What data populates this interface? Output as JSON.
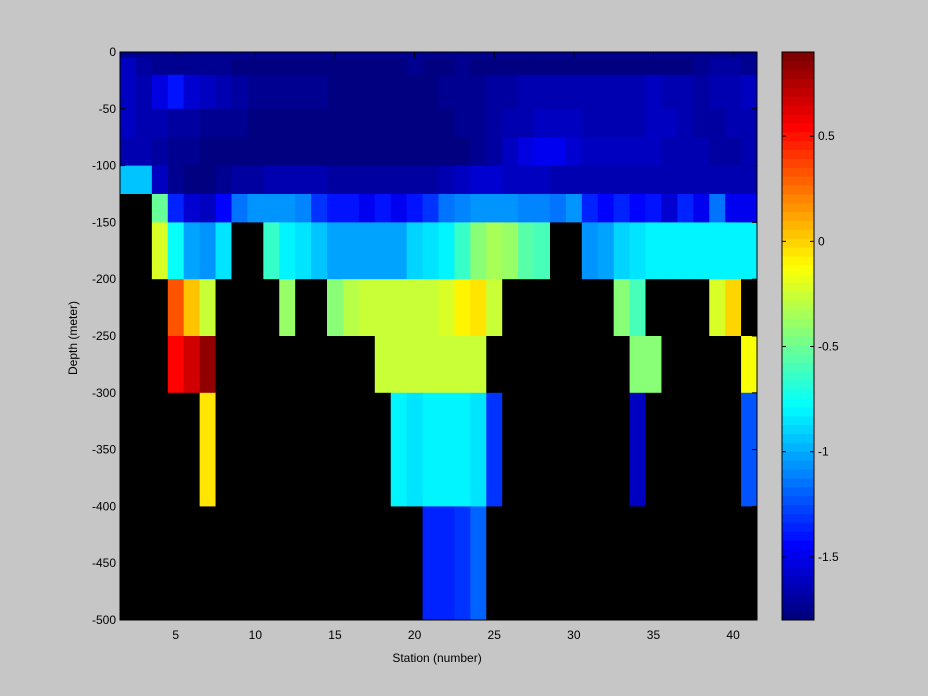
{
  "chart_data": {
    "type": "heatmap",
    "xlabel": "Station (number)",
    "ylabel": "Depth (meter)",
    "xlim": [
      1.5,
      41.5
    ],
    "ylim": [
      -500,
      0
    ],
    "xticks": [
      5,
      10,
      15,
      20,
      25,
      30,
      35,
      40
    ],
    "yticks": [
      0,
      -50,
      -100,
      -150,
      -200,
      -250,
      -300,
      -350,
      -400,
      -450,
      -500
    ],
    "colorbar": {
      "colormap": "jet",
      "range": [
        -1.8,
        0.9
      ],
      "ticks": [
        0.5,
        0,
        -0.5,
        -1,
        -1.5
      ],
      "placement": "right"
    },
    "missing_color": "#000000",
    "background": "#c6c6c6",
    "stations": [
      2,
      3,
      4,
      5,
      6,
      7,
      8,
      9,
      10,
      11,
      12,
      13,
      14,
      15,
      16,
      17,
      18,
      19,
      20,
      21,
      22,
      23,
      24,
      25,
      26,
      27,
      28,
      29,
      30,
      31,
      32,
      33,
      34,
      35,
      36,
      37,
      38,
      39,
      40,
      41
    ],
    "rows": [
      {
        "depth_top": 0,
        "depth_bottom": -5,
        "values": [
          -1.75,
          -1.75,
          -1.75,
          -1.75,
          -1.75,
          -1.75,
          -1.75,
          -1.75,
          -1.75,
          -1.75,
          -1.75,
          -1.75,
          -1.75,
          -1.75,
          -1.75,
          -1.75,
          -1.75,
          -1.75,
          -1.75,
          -1.75,
          -1.75,
          -1.75,
          -1.75,
          -1.75,
          -1.75,
          -1.75,
          -1.75,
          -1.75,
          -1.75,
          -1.75,
          -1.75,
          -1.75,
          -1.75,
          -1.75,
          -1.75,
          -1.75,
          -1.75,
          -1.75,
          -1.75,
          -1.75
        ]
      },
      {
        "depth_top": -5,
        "depth_bottom": -20,
        "values": [
          -1.62,
          -1.68,
          -1.72,
          -1.72,
          -1.72,
          -1.74,
          -1.74,
          -1.76,
          -1.76,
          -1.76,
          -1.76,
          -1.76,
          -1.77,
          -1.77,
          -1.77,
          -1.77,
          -1.77,
          -1.77,
          -1.74,
          -1.77,
          -1.77,
          -1.75,
          -1.77,
          -1.77,
          -1.77,
          -1.77,
          -1.77,
          -1.77,
          -1.77,
          -1.77,
          -1.77,
          -1.77,
          -1.77,
          -1.77,
          -1.77,
          -1.77,
          -1.72,
          -1.7,
          -1.7,
          -1.72
        ]
      },
      {
        "depth_top": -20,
        "depth_bottom": -50,
        "values": [
          -1.6,
          -1.64,
          -1.52,
          -1.4,
          -1.55,
          -1.62,
          -1.66,
          -1.68,
          -1.72,
          -1.72,
          -1.74,
          -1.74,
          -1.74,
          -1.76,
          -1.76,
          -1.76,
          -1.76,
          -1.76,
          -1.76,
          -1.76,
          -1.74,
          -1.74,
          -1.72,
          -1.7,
          -1.7,
          -1.66,
          -1.64,
          -1.64,
          -1.64,
          -1.66,
          -1.66,
          -1.66,
          -1.64,
          -1.62,
          -1.64,
          -1.66,
          -1.68,
          -1.66,
          -1.64,
          -1.62
        ]
      },
      {
        "depth_top": -50,
        "depth_bottom": -75,
        "values": [
          -1.62,
          -1.64,
          -1.66,
          -1.68,
          -1.7,
          -1.72,
          -1.74,
          -1.74,
          -1.76,
          -1.76,
          -1.76,
          -1.76,
          -1.76,
          -1.76,
          -1.77,
          -1.77,
          -1.77,
          -1.77,
          -1.77,
          -1.77,
          -1.76,
          -1.74,
          -1.72,
          -1.7,
          -1.66,
          -1.64,
          -1.6,
          -1.6,
          -1.62,
          -1.64,
          -1.64,
          -1.66,
          -1.64,
          -1.6,
          -1.62,
          -1.64,
          -1.68,
          -1.7,
          -1.66,
          -1.64
        ]
      },
      {
        "depth_top": -75,
        "depth_bottom": -100,
        "values": [
          -1.64,
          -1.66,
          -1.68,
          -1.72,
          -1.74,
          -1.76,
          -1.76,
          -1.77,
          -1.77,
          -1.77,
          -1.77,
          -1.77,
          -1.77,
          -1.77,
          -1.77,
          -1.77,
          -1.77,
          -1.78,
          -1.78,
          -1.78,
          -1.78,
          -1.76,
          -1.72,
          -1.68,
          -1.6,
          -1.52,
          -1.48,
          -1.5,
          -1.56,
          -1.6,
          -1.6,
          -1.62,
          -1.62,
          -1.62,
          -1.64,
          -1.64,
          -1.66,
          -1.68,
          -1.68,
          -1.66
        ]
      },
      {
        "depth_top": -100,
        "depth_bottom": -125,
        "values": [
          -0.95,
          -0.95,
          -1.62,
          -1.74,
          -1.76,
          -1.76,
          -1.74,
          -1.7,
          -1.68,
          -1.66,
          -1.66,
          -1.64,
          -1.66,
          -1.68,
          -1.7,
          -1.7,
          -1.7,
          -1.7,
          -1.7,
          -1.68,
          -1.66,
          -1.62,
          -1.58,
          -1.58,
          -1.6,
          -1.62,
          -1.62,
          -1.64,
          -1.64,
          -1.64,
          -1.64,
          -1.64,
          -1.64,
          -1.64,
          -1.64,
          -1.64,
          -1.64,
          -1.64,
          -1.64,
          -1.64
        ]
      },
      {
        "depth_top": -125,
        "depth_bottom": -150,
        "values": [
          null,
          null,
          -0.5,
          -1.35,
          -1.55,
          -1.6,
          -1.45,
          -1.15,
          -1.05,
          -1.05,
          -1.05,
          -1.1,
          -1.3,
          -1.4,
          -1.4,
          -1.48,
          -1.4,
          -1.48,
          -1.4,
          -1.3,
          -1.15,
          -1.1,
          -1.05,
          -1.05,
          -1.05,
          -1.1,
          -1.1,
          -1.15,
          -1.05,
          -1.35,
          -1.45,
          -1.35,
          -1.45,
          -1.4,
          -1.55,
          -1.35,
          -1.5,
          -1.15,
          -1.5,
          -1.5
        ]
      },
      {
        "depth_top": -150,
        "depth_bottom": -200,
        "values": [
          null,
          null,
          -0.2,
          -0.75,
          -1.0,
          -1.05,
          -0.85,
          null,
          null,
          -0.65,
          -0.8,
          -0.85,
          -0.95,
          -1.0,
          -1.0,
          -1.0,
          -1.0,
          -1.0,
          -0.9,
          -0.85,
          -0.8,
          -0.65,
          -0.45,
          -0.35,
          -0.4,
          -0.55,
          -0.6,
          null,
          null,
          -1.05,
          -1.0,
          -0.9,
          -0.85,
          -0.8,
          -0.8,
          -0.8,
          -0.8,
          -0.8,
          -0.8,
          -0.8
        ]
      },
      {
        "depth_top": -200,
        "depth_bottom": -250,
        "values": [
          null,
          null,
          null,
          0.35,
          0.05,
          -0.25,
          null,
          null,
          null,
          null,
          -0.4,
          null,
          null,
          -0.45,
          -0.3,
          -0.25,
          -0.25,
          -0.25,
          -0.25,
          -0.25,
          -0.2,
          -0.1,
          -0.05,
          -0.25,
          null,
          null,
          null,
          null,
          null,
          null,
          null,
          -0.45,
          -0.6,
          null,
          null,
          null,
          null,
          -0.2,
          0.0,
          null
        ]
      },
      {
        "depth_top": -250,
        "depth_bottom": -300,
        "values": [
          null,
          null,
          null,
          0.55,
          0.65,
          0.85,
          null,
          null,
          null,
          null,
          null,
          null,
          null,
          null,
          null,
          null,
          -0.25,
          -0.25,
          -0.25,
          -0.25,
          -0.25,
          -0.25,
          -0.25,
          null,
          null,
          null,
          null,
          null,
          null,
          null,
          null,
          null,
          -0.45,
          -0.45,
          null,
          null,
          null,
          null,
          null,
          -0.15
        ]
      },
      {
        "depth_top": -300,
        "depth_bottom": -400,
        "values": [
          null,
          null,
          null,
          null,
          null,
          -0.05,
          null,
          null,
          null,
          null,
          null,
          null,
          null,
          null,
          null,
          null,
          null,
          -0.8,
          -0.85,
          -0.8,
          -0.8,
          -0.8,
          -0.85,
          -1.3,
          null,
          null,
          null,
          null,
          null,
          null,
          null,
          null,
          -1.6,
          null,
          null,
          null,
          null,
          null,
          null,
          -1.25
        ]
      },
      {
        "depth_top": -400,
        "depth_bottom": -500,
        "values": [
          null,
          null,
          null,
          null,
          null,
          null,
          null,
          null,
          null,
          null,
          null,
          null,
          null,
          null,
          null,
          null,
          null,
          null,
          null,
          -1.35,
          -1.35,
          -1.3,
          -1.2,
          null,
          null,
          null,
          null,
          null,
          null,
          null,
          null,
          null,
          null,
          null,
          null,
          null,
          null,
          null,
          null,
          null
        ]
      }
    ]
  }
}
